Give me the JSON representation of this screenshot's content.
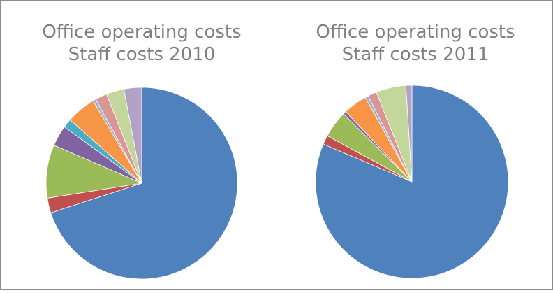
{
  "chart_data": [
    {
      "type": "pie",
      "title": "Office operating costs",
      "subtitle": "Staff costs 2010",
      "values": [
        70,
        2.5,
        9,
        3.5,
        1.5,
        5,
        0.5,
        2,
        3,
        3
      ],
      "colors": [
        "#4f81bd",
        "#c0504d",
        "#9bbb59",
        "#8064a2",
        "#4bacc6",
        "#f79646",
        "#95b3d7",
        "#d99694",
        "#c3d69b",
        "#b3a2c7"
      ]
    },
    {
      "type": "pie",
      "title": "Office operating costs",
      "subtitle": "Staff costs 2011",
      "values": [
        81,
        1.5,
        4.5,
        0.5,
        4,
        0.5,
        1.5,
        5,
        1
      ],
      "colors": [
        "#4f81bd",
        "#c0504d",
        "#9bbb59",
        "#8064a2",
        "#f79646",
        "#95b3d7",
        "#d99694",
        "#c3d69b",
        "#b3a2c7"
      ]
    }
  ]
}
